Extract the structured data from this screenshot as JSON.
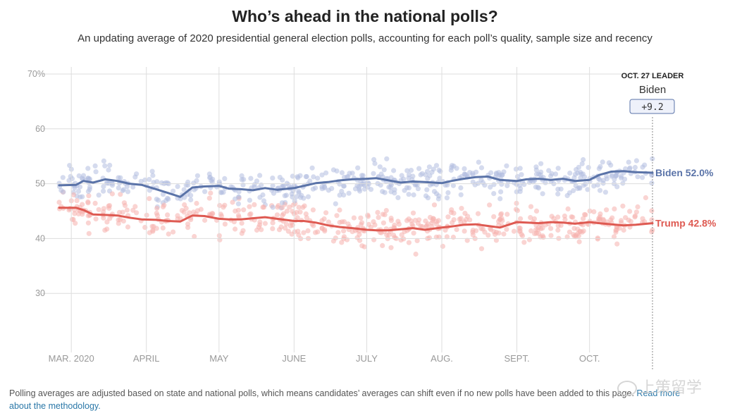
{
  "header": {
    "title": "Who’s ahead in the national polls?",
    "subtitle": "An updating average of 2020 presidential general election polls, accounting for each poll’s quality, sample size and recency"
  },
  "leader": {
    "heading": "OCT. 27 LEADER",
    "name": "Biden",
    "margin": "+9.2"
  },
  "footnote": {
    "text": "Polling averages are adjusted based on state and national polls, which means candidates’ averages can shift even if no new polls have been added to this page.",
    "link": "Read more about the methodology."
  },
  "watermark": {
    "text": "上策留学"
  },
  "colors": {
    "biden": "#5a73a8",
    "trump": "#de5a52",
    "biden_dot": "#b3bde0",
    "trump_dot": "#f6b1ad",
    "grid": "#dddddd"
  },
  "chart_data": {
    "type": "line",
    "title": "Who’s ahead in the national polls?",
    "ylim": [
      20,
      70
    ],
    "yticks": [
      30,
      40,
      50,
      60,
      70
    ],
    "ytick_labels": [
      "30",
      "40",
      "50",
      "60",
      "70%"
    ],
    "xlim": [
      "2020-02-25",
      "2020-10-27"
    ],
    "xticks": [
      "2020-03-01",
      "2020-04-01",
      "2020-05-01",
      "2020-06-01",
      "2020-07-01",
      "2020-08-01",
      "2020-09-01",
      "2020-10-01"
    ],
    "xtick_labels": [
      "MAR. 2020",
      "APRIL",
      "MAY",
      "JUNE",
      "JULY",
      "AUG.",
      "SEPT.",
      "OCT."
    ],
    "grid": true,
    "series": [
      {
        "name": "Biden",
        "end_label": "Biden 52.0%",
        "x": [
          "2020-02-25",
          "2020-03-03",
          "2020-03-06",
          "2020-03-10",
          "2020-03-15",
          "2020-03-20",
          "2020-03-25",
          "2020-03-30",
          "2020-04-05",
          "2020-04-10",
          "2020-04-15",
          "2020-04-20",
          "2020-04-25",
          "2020-05-01",
          "2020-05-05",
          "2020-05-10",
          "2020-05-15",
          "2020-05-20",
          "2020-05-25",
          "2020-06-01",
          "2020-06-05",
          "2020-06-10",
          "2020-06-15",
          "2020-06-20",
          "2020-06-25",
          "2020-07-01",
          "2020-07-05",
          "2020-07-10",
          "2020-07-15",
          "2020-07-20",
          "2020-07-25",
          "2020-08-01",
          "2020-08-05",
          "2020-08-10",
          "2020-08-15",
          "2020-08-20",
          "2020-08-25",
          "2020-09-01",
          "2020-09-05",
          "2020-09-10",
          "2020-09-15",
          "2020-09-20",
          "2020-09-25",
          "2020-10-01",
          "2020-10-05",
          "2020-10-10",
          "2020-10-15",
          "2020-10-20",
          "2020-10-27"
        ],
        "values": [
          49.7,
          49.8,
          50.5,
          50.2,
          50.8,
          50.5,
          50.0,
          49.8,
          49.0,
          48.3,
          47.6,
          49.3,
          49.5,
          49.6,
          49.1,
          49.0,
          48.8,
          49.2,
          48.9,
          49.2,
          49.6,
          50.1,
          50.3,
          50.6,
          50.8,
          50.9,
          51.0,
          50.6,
          50.2,
          50.4,
          50.3,
          50.1,
          50.5,
          50.9,
          51.2,
          51.3,
          50.7,
          50.5,
          50.8,
          50.9,
          50.7,
          50.9,
          50.5,
          50.7,
          51.6,
          52.2,
          52.3,
          52.1,
          52.0
        ]
      },
      {
        "name": "Trump",
        "end_label": "Trump 42.8%",
        "x": [
          "2020-02-25",
          "2020-03-03",
          "2020-03-06",
          "2020-03-10",
          "2020-03-15",
          "2020-03-20",
          "2020-03-25",
          "2020-03-30",
          "2020-04-05",
          "2020-04-10",
          "2020-04-15",
          "2020-04-20",
          "2020-04-25",
          "2020-05-01",
          "2020-05-05",
          "2020-05-10",
          "2020-05-15",
          "2020-05-20",
          "2020-05-25",
          "2020-06-01",
          "2020-06-05",
          "2020-06-10",
          "2020-06-15",
          "2020-06-20",
          "2020-06-25",
          "2020-07-01",
          "2020-07-05",
          "2020-07-10",
          "2020-07-15",
          "2020-07-20",
          "2020-07-25",
          "2020-08-01",
          "2020-08-05",
          "2020-08-10",
          "2020-08-15",
          "2020-08-20",
          "2020-08-25",
          "2020-09-01",
          "2020-09-05",
          "2020-09-10",
          "2020-09-15",
          "2020-09-20",
          "2020-09-25",
          "2020-10-01",
          "2020-10-05",
          "2020-10-10",
          "2020-10-15",
          "2020-10-20",
          "2020-10-27"
        ],
        "values": [
          45.6,
          45.6,
          45.2,
          44.4,
          44.3,
          44.2,
          43.8,
          43.5,
          43.4,
          43.2,
          43.1,
          44.2,
          44.1,
          43.6,
          43.5,
          43.5,
          43.7,
          43.9,
          43.6,
          43.2,
          43.2,
          42.9,
          42.4,
          42.1,
          41.9,
          41.6,
          41.5,
          41.5,
          41.7,
          41.9,
          41.6,
          42.0,
          42.2,
          42.5,
          42.6,
          42.3,
          42.0,
          43.0,
          42.9,
          42.8,
          43.0,
          42.9,
          42.7,
          43.0,
          42.8,
          42.6,
          42.4,
          42.5,
          42.8
        ]
      }
    ]
  }
}
